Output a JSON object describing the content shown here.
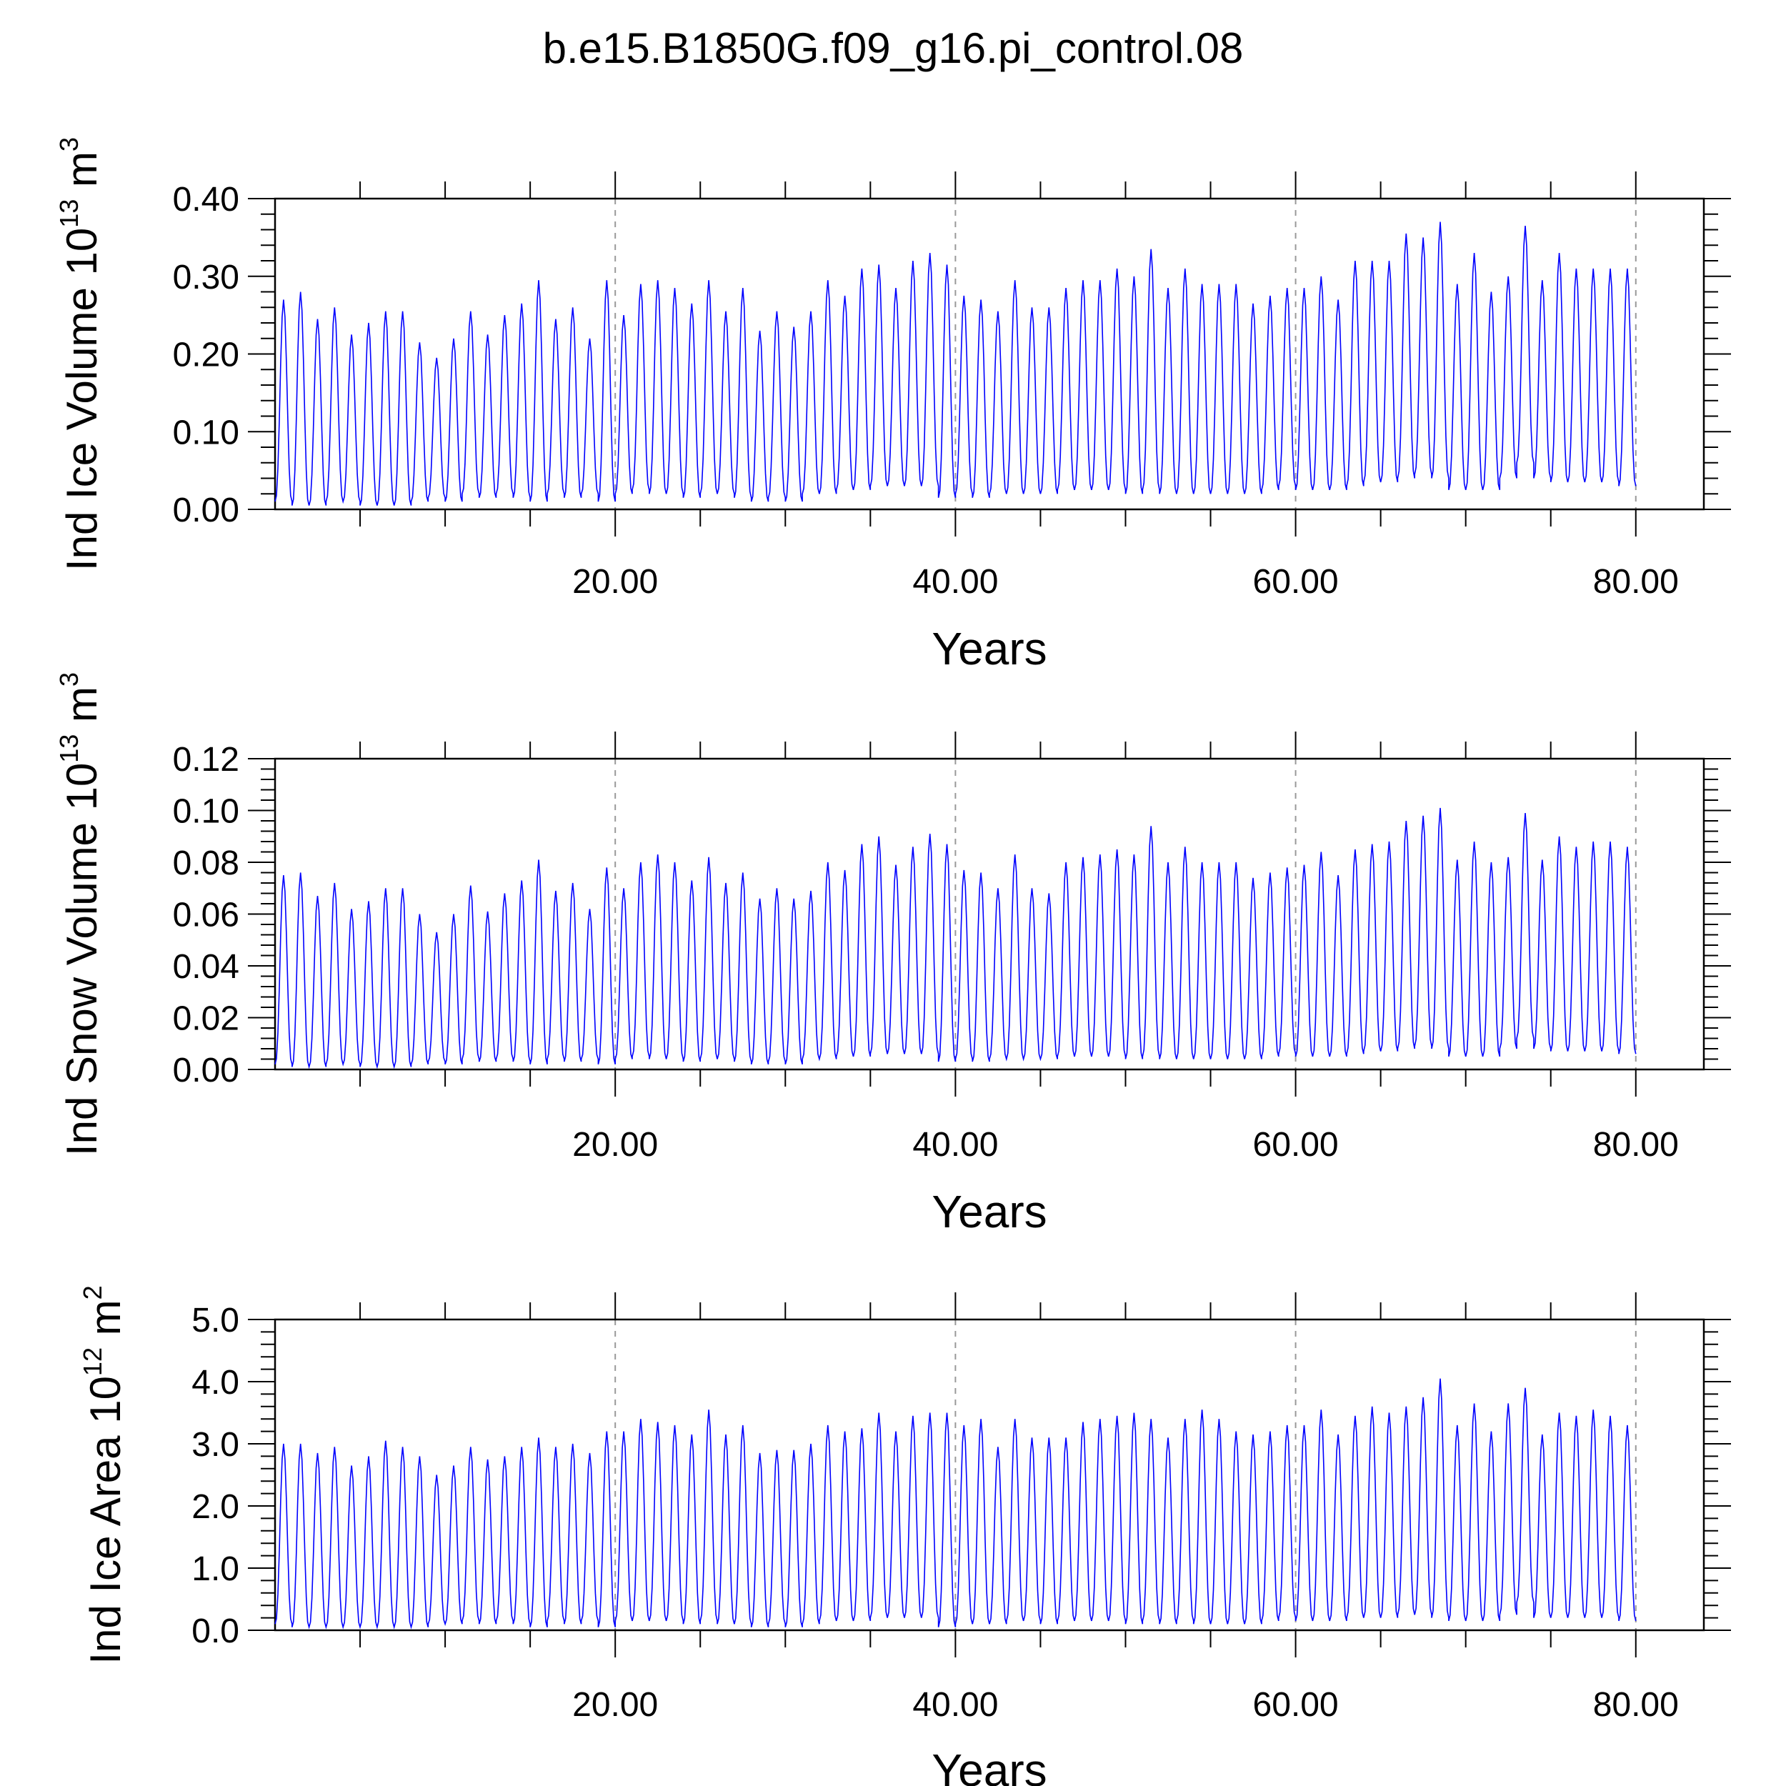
{
  "figure": {
    "title": "b.e15.B1850G.f09_g16.pi_control.08",
    "line_color": "#0000ff"
  },
  "chart_data": [
    {
      "type": "line",
      "id": "ice-volume",
      "ylabel": {
        "main": "Ind Ice Volume 10",
        "sup1": "13",
        "unit": " m",
        "sup2": "3"
      },
      "xlabel": "Years",
      "xlim": [
        0,
        84
      ],
      "ylim": [
        0,
        0.4
      ],
      "y_ticks": [
        {
          "value": 0.0,
          "label": "0.00"
        },
        {
          "value": 0.1,
          "label": "0.10"
        },
        {
          "value": 0.2,
          "label": "0.20"
        },
        {
          "value": 0.3,
          "label": "0.30"
        },
        {
          "value": 0.4,
          "label": "0.40"
        }
      ],
      "x_ticks": [
        {
          "value": 20,
          "label": "20.00"
        },
        {
          "value": 40,
          "label": "40.00"
        },
        {
          "value": 60,
          "label": "60.00"
        },
        {
          "value": 80,
          "label": "80.00"
        }
      ],
      "grid": "dashed vertical at major x ticks",
      "series": [
        {
          "x_start": 0.5,
          "x_step": 1,
          "maxima": [
            0.27,
            0.28,
            0.245,
            0.26,
            0.225,
            0.24,
            0.255,
            0.255,
            0.215,
            0.195,
            0.22,
            0.255,
            0.225,
            0.25,
            0.265,
            0.295,
            0.245,
            0.26,
            0.22,
            0.295,
            0.25,
            0.29,
            0.295,
            0.285,
            0.265,
            0.295,
            0.255,
            0.285,
            0.23,
            0.255,
            0.235,
            0.255,
            0.295,
            0.275,
            0.31,
            0.315,
            0.285,
            0.32,
            0.33,
            0.315,
            0.275,
            0.27,
            0.255,
            0.295,
            0.26,
            0.26,
            0.285,
            0.295,
            0.295,
            0.31,
            0.3,
            0.335,
            0.285,
            0.31,
            0.29,
            0.29,
            0.29,
            0.265,
            0.275,
            0.285,
            0.285,
            0.3,
            0.27,
            0.32,
            0.32,
            0.32,
            0.355,
            0.35,
            0.37,
            0.29,
            0.33,
            0.28,
            0.3,
            0.365,
            0.295,
            0.33,
            0.31,
            0.31,
            0.31,
            0.31
          ],
          "minima": [
            0.01,
            0.005,
            0.005,
            0.01,
            0.01,
            0.005,
            0.005,
            0.005,
            0.01,
            0.015,
            0.01,
            0.02,
            0.015,
            0.02,
            0.015,
            0.01,
            0.02,
            0.015,
            0.02,
            0.01,
            0.02,
            0.025,
            0.02,
            0.02,
            0.015,
            0.02,
            0.02,
            0.015,
            0.01,
            0.015,
            0.01,
            0.02,
            0.02,
            0.025,
            0.025,
            0.03,
            0.03,
            0.03,
            0.03,
            0.015,
            0.02,
            0.015,
            0.02,
            0.02,
            0.02,
            0.02,
            0.025,
            0.025,
            0.025,
            0.025,
            0.02,
            0.025,
            0.02,
            0.02,
            0.02,
            0.02,
            0.02,
            0.02,
            0.025,
            0.03,
            0.025,
            0.025,
            0.025,
            0.03,
            0.035,
            0.035,
            0.04,
            0.045,
            0.04,
            0.025,
            0.025,
            0.025,
            0.04,
            0.06,
            0.04,
            0.035,
            0.035,
            0.035,
            0.035,
            0.03
          ]
        }
      ]
    },
    {
      "type": "line",
      "id": "snow-volume",
      "ylabel": {
        "main": "Ind Snow Volume 10",
        "sup1": "13",
        "unit": " m",
        "sup2": "3"
      },
      "xlabel": "Years",
      "xlim": [
        0,
        84
      ],
      "ylim": [
        0,
        0.12
      ],
      "y_ticks": [
        {
          "value": 0.0,
          "label": "0.00"
        },
        {
          "value": 0.02,
          "label": "0.02"
        },
        {
          "value": 0.04,
          "label": "0.04"
        },
        {
          "value": 0.06,
          "label": "0.06"
        },
        {
          "value": 0.08,
          "label": "0.08"
        },
        {
          "value": 0.1,
          "label": "0.10"
        },
        {
          "value": 0.12,
          "label": "0.12"
        }
      ],
      "x_ticks": [
        {
          "value": 20,
          "label": "20.00"
        },
        {
          "value": 40,
          "label": "40.00"
        },
        {
          "value": 60,
          "label": "60.00"
        },
        {
          "value": 80,
          "label": "80.00"
        }
      ],
      "grid": "dashed vertical at major x ticks",
      "series": [
        {
          "x_start": 0.5,
          "x_step": 1,
          "maxima": [
            0.075,
            0.076,
            0.067,
            0.072,
            0.062,
            0.065,
            0.07,
            0.07,
            0.06,
            0.053,
            0.06,
            0.071,
            0.061,
            0.068,
            0.073,
            0.081,
            0.069,
            0.072,
            0.062,
            0.078,
            0.07,
            0.08,
            0.083,
            0.08,
            0.073,
            0.082,
            0.072,
            0.076,
            0.066,
            0.07,
            0.066,
            0.069,
            0.08,
            0.077,
            0.087,
            0.09,
            0.079,
            0.086,
            0.091,
            0.087,
            0.077,
            0.076,
            0.07,
            0.083,
            0.07,
            0.068,
            0.08,
            0.082,
            0.083,
            0.085,
            0.083,
            0.094,
            0.08,
            0.086,
            0.08,
            0.08,
            0.08,
            0.074,
            0.076,
            0.078,
            0.079,
            0.084,
            0.075,
            0.085,
            0.087,
            0.088,
            0.096,
            0.098,
            0.101,
            0.081,
            0.088,
            0.08,
            0.082,
            0.099,
            0.081,
            0.09,
            0.086,
            0.088,
            0.088,
            0.086
          ],
          "minima": [
            0.002,
            0.001,
            0.001,
            0.002,
            0.002,
            0.001,
            0.001,
            0.001,
            0.002,
            0.003,
            0.002,
            0.004,
            0.003,
            0.004,
            0.003,
            0.002,
            0.004,
            0.003,
            0.004,
            0.002,
            0.004,
            0.005,
            0.004,
            0.004,
            0.003,
            0.004,
            0.004,
            0.003,
            0.002,
            0.003,
            0.002,
            0.004,
            0.004,
            0.005,
            0.005,
            0.006,
            0.006,
            0.006,
            0.006,
            0.003,
            0.004,
            0.003,
            0.004,
            0.004,
            0.004,
            0.004,
            0.005,
            0.005,
            0.005,
            0.005,
            0.004,
            0.005,
            0.004,
            0.004,
            0.004,
            0.004,
            0.004,
            0.004,
            0.005,
            0.006,
            0.005,
            0.005,
            0.005,
            0.006,
            0.007,
            0.007,
            0.008,
            0.009,
            0.008,
            0.005,
            0.005,
            0.005,
            0.008,
            0.012,
            0.008,
            0.007,
            0.007,
            0.007,
            0.007,
            0.006
          ]
        }
      ]
    },
    {
      "type": "line",
      "id": "ice-area",
      "ylabel": {
        "main": "Ind Ice Area 10",
        "sup1": "12",
        "unit": " m",
        "sup2": "2"
      },
      "xlabel": "Years",
      "xlim": [
        0,
        84
      ],
      "ylim": [
        0,
        5.0
      ],
      "y_ticks": [
        {
          "value": 0.0,
          "label": "0.0"
        },
        {
          "value": 1.0,
          "label": "1.0"
        },
        {
          "value": 2.0,
          "label": "2.0"
        },
        {
          "value": 3.0,
          "label": "3.0"
        },
        {
          "value": 4.0,
          "label": "4.0"
        },
        {
          "value": 5.0,
          "label": "5.0"
        }
      ],
      "x_ticks": [
        {
          "value": 20,
          "label": "20.00"
        },
        {
          "value": 40,
          "label": "40.00"
        },
        {
          "value": 60,
          "label": "60.00"
        },
        {
          "value": 80,
          "label": "80.00"
        }
      ],
      "grid": "dashed vertical at major x ticks",
      "series": [
        {
          "x_start": 0.5,
          "x_step": 1,
          "maxima": [
            3.0,
            3.0,
            2.85,
            2.95,
            2.65,
            2.8,
            3.05,
            2.95,
            2.8,
            2.5,
            2.65,
            2.95,
            2.75,
            2.8,
            2.95,
            3.1,
            2.95,
            3.0,
            2.85,
            3.2,
            3.2,
            3.4,
            3.35,
            3.3,
            3.15,
            3.55,
            3.15,
            3.3,
            2.85,
            2.9,
            2.9,
            3.0,
            3.3,
            3.2,
            3.25,
            3.5,
            3.2,
            3.45,
            3.5,
            3.5,
            3.3,
            3.4,
            2.95,
            3.4,
            3.1,
            3.1,
            3.1,
            3.35,
            3.4,
            3.45,
            3.5,
            3.4,
            3.1,
            3.4,
            3.55,
            3.4,
            3.2,
            3.15,
            3.2,
            3.3,
            3.3,
            3.55,
            3.15,
            3.45,
            3.6,
            3.5,
            3.6,
            3.75,
            4.05,
            3.3,
            3.65,
            3.2,
            3.65,
            3.9,
            3.15,
            3.5,
            3.45,
            3.55,
            3.45,
            3.3
          ],
          "minima": [
            0.1,
            0.05,
            0.05,
            0.05,
            0.05,
            0.05,
            0.05,
            0.05,
            0.05,
            0.1,
            0.1,
            0.15,
            0.1,
            0.15,
            0.1,
            0.05,
            0.15,
            0.1,
            0.15,
            0.05,
            0.15,
            0.15,
            0.15,
            0.15,
            0.1,
            0.15,
            0.1,
            0.1,
            0.05,
            0.1,
            0.05,
            0.1,
            0.15,
            0.15,
            0.15,
            0.2,
            0.2,
            0.2,
            0.2,
            0.05,
            0.1,
            0.1,
            0.1,
            0.15,
            0.15,
            0.1,
            0.15,
            0.15,
            0.15,
            0.15,
            0.1,
            0.15,
            0.1,
            0.15,
            0.1,
            0.1,
            0.1,
            0.1,
            0.15,
            0.2,
            0.15,
            0.15,
            0.15,
            0.2,
            0.2,
            0.2,
            0.25,
            0.25,
            0.2,
            0.15,
            0.15,
            0.15,
            0.25,
            0.45,
            0.2,
            0.2,
            0.2,
            0.2,
            0.2,
            0.15
          ]
        }
      ]
    }
  ]
}
